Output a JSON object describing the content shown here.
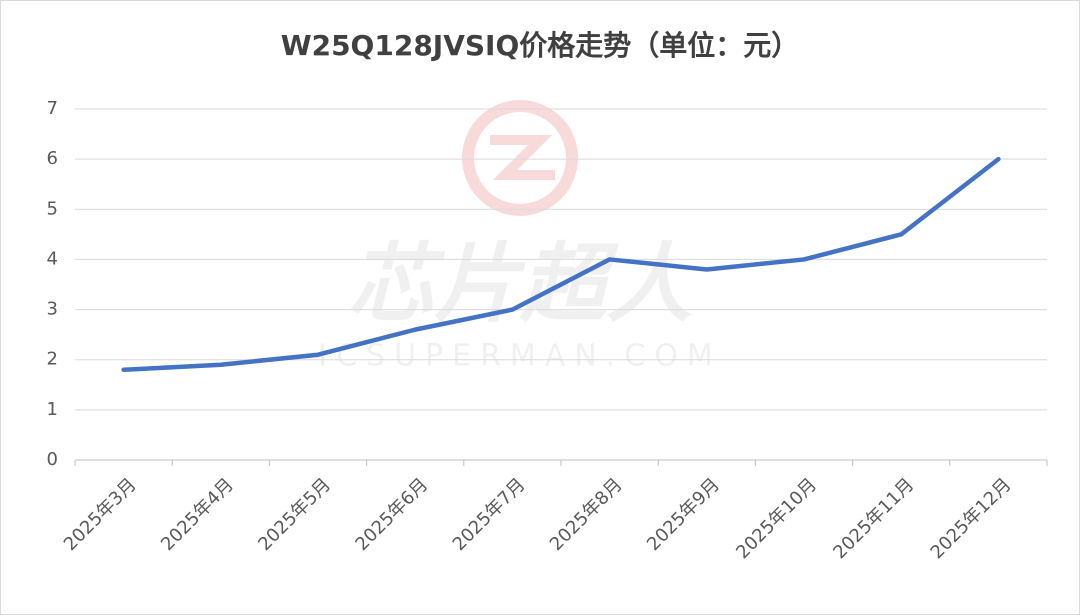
{
  "chart_data": {
    "type": "line",
    "title": "W25Q128JVSIQ价格走势（单位：元）",
    "categories": [
      "2025年3月",
      "2025年4月",
      "2025年5月",
      "2025年6月",
      "2025年7月",
      "2025年8月",
      "2025年9月",
      "2025年10月",
      "2025年11月",
      "2025年12月"
    ],
    "series": [
      {
        "color": "#4472c4",
        "values": [
          1.8,
          1.9,
          2.1,
          2.6,
          3.0,
          4.0,
          3.8,
          4.0,
          4.5,
          6.0
        ]
      }
    ],
    "ylim": [
      0,
      7
    ],
    "yticks": [
      0,
      1,
      2,
      3,
      4,
      5,
      6,
      7
    ],
    "grid": true
  },
  "watermark": {
    "text": "芯片超人",
    "url": "ICSUPERMAN.COM"
  }
}
